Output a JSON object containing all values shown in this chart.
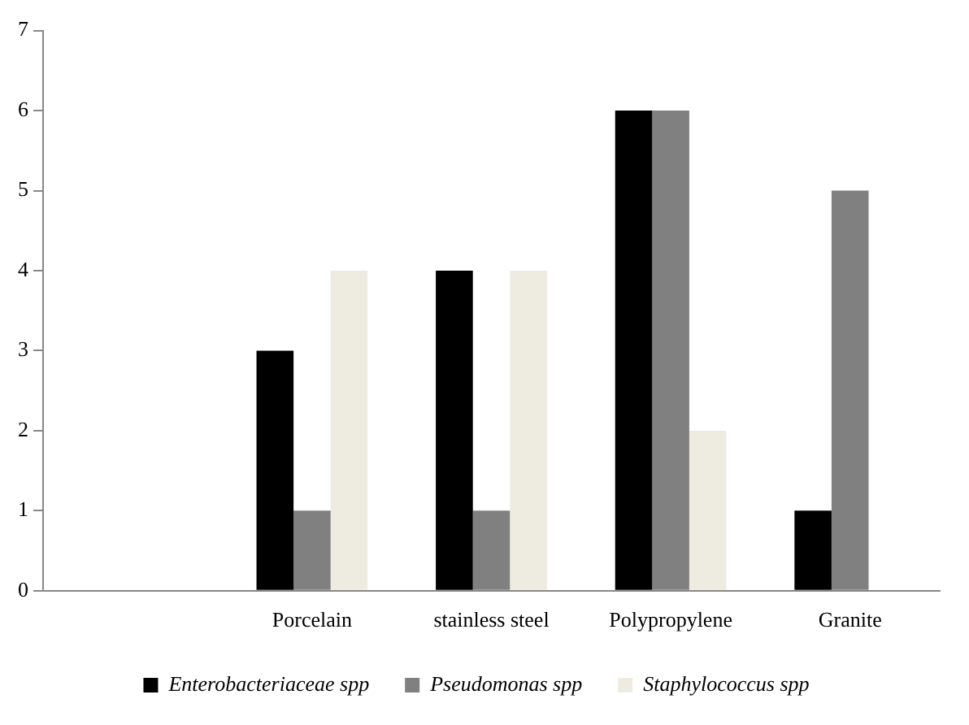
{
  "chart_data": {
    "type": "bar",
    "categories": [
      null,
      "Porcelain",
      "stainless steel",
      "Polypropylene",
      "Granite"
    ],
    "series": [
      {
        "name": "Enterobacteriaceae spp",
        "color": "#000000",
        "values": [
          null,
          3,
          4,
          6,
          1
        ]
      },
      {
        "name": "Pseudomonas spp",
        "color": "#808080",
        "values": [
          null,
          1,
          1,
          6,
          5
        ]
      },
      {
        "name": "Staphylococcus spp",
        "color": "#eeece1",
        "values": [
          null,
          4,
          4,
          2,
          null
        ]
      }
    ],
    "ylim": [
      0,
      7
    ],
    "yticks": [
      0,
      1,
      2,
      3,
      4,
      5,
      6,
      7
    ],
    "grid": false,
    "legend": "bottom"
  }
}
